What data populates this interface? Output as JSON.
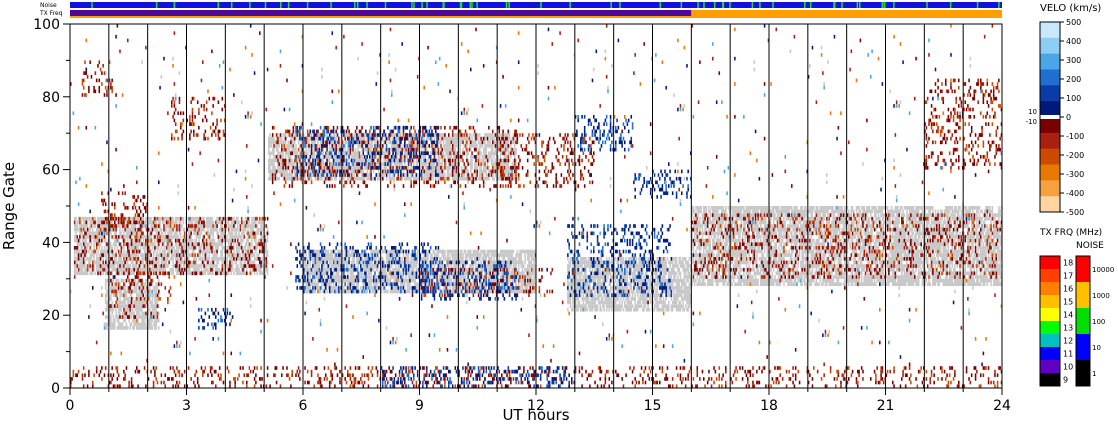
{
  "chart_data": {
    "type": "heatmap",
    "title": "",
    "xlabel": "UT hours",
    "ylabel": "Range Gate",
    "xlim": [
      0,
      24
    ],
    "ylim": [
      0,
      100
    ],
    "x_ticks": [
      "0",
      "3",
      "6",
      "9",
      "12",
      "15",
      "18",
      "21",
      "24"
    ],
    "y_ticks": [
      "0",
      "20",
      "40",
      "60",
      "80",
      "100"
    ],
    "top_bars": {
      "noise_label": "Noise",
      "txfreq_label": "TX Freq",
      "noise_color": "#1010e0",
      "noise_tick_color": "#20e020",
      "txfreq_segments": [
        {
          "from": 0,
          "to": 16,
          "color": "#50089a"
        },
        {
          "from": 16,
          "to": 24,
          "color": "#ff9e00"
        }
      ]
    },
    "velocity_scale": {
      "title": "VELO (km/s)",
      "ticks": [
        "500",
        "400",
        "300",
        "200",
        "100",
        "0",
        "-100",
        "-200",
        "-300",
        "-400",
        "-500"
      ],
      "near_zero": [
        "10",
        "-10"
      ],
      "colors": [
        "#c8e8ff",
        "#8ccdf5",
        "#4aa6e8",
        "#1e6fd0",
        "#0a3ca8",
        "#001a7a",
        "#7a0000",
        "#a82010",
        "#cc4a00",
        "#e87800",
        "#f6a040",
        "#ffd4a0"
      ],
      "ground_scatter_color": "#c8c8c8"
    },
    "txfreq_scale": {
      "title": "TX FRQ (MHz)",
      "ticks": [
        "18",
        "17",
        "16",
        "15",
        "14",
        "13",
        "12",
        "11",
        "10",
        "9"
      ],
      "colors": [
        "#ff0000",
        "#ff4000",
        "#ff8000",
        "#ffc000",
        "#ffff00",
        "#00ff00",
        "#00c0c0",
        "#0000ff",
        "#6000c0",
        "#000000"
      ]
    },
    "noise_scale": {
      "title": "NOISE",
      "ticks": [
        "10000",
        "1000",
        "100",
        "10",
        "1"
      ],
      "colors": [
        "#ff0000",
        "#ffc000",
        "#00e000",
        "#0000ff",
        "#000000"
      ]
    },
    "regions": [
      {
        "x0": 0.1,
        "x1": 5.1,
        "g0": 31,
        "g1": 47,
        "kind": "gs"
      },
      {
        "x0": 0.9,
        "x1": 2.3,
        "g0": 16,
        "g1": 30,
        "kind": "gs"
      },
      {
        "x0": 16.0,
        "x1": 24.0,
        "g0": 28,
        "g1": 50,
        "kind": "gs"
      },
      {
        "x0": 12.8,
        "x1": 16.0,
        "g0": 21,
        "g1": 36,
        "kind": "gs"
      },
      {
        "x0": 6.0,
        "x1": 12.0,
        "g0": 26,
        "g1": 38,
        "kind": "gs"
      },
      {
        "x0": 5.1,
        "x1": 11.5,
        "g0": 57,
        "g1": 70,
        "kind": "gs"
      },
      {
        "x0": 0.1,
        "x1": 5.1,
        "g0": 31,
        "g1": 47,
        "kind": "red"
      },
      {
        "x0": 1.0,
        "x1": 2.6,
        "g0": 19,
        "g1": 32,
        "kind": "red"
      },
      {
        "x0": 2.6,
        "x1": 4.0,
        "g0": 68,
        "g1": 80,
        "kind": "red"
      },
      {
        "x0": 0.3,
        "x1": 1.1,
        "g0": 80,
        "g1": 90,
        "kind": "red"
      },
      {
        "x0": 0.8,
        "x1": 2.0,
        "g0": 43,
        "g1": 54,
        "kind": "red"
      },
      {
        "x0": 5.2,
        "x1": 11.5,
        "g0": 55,
        "g1": 72,
        "kind": "red"
      },
      {
        "x0": 9.0,
        "x1": 12.5,
        "g0": 25,
        "g1": 33,
        "kind": "red"
      },
      {
        "x0": 11.0,
        "x1": 13.5,
        "g0": 55,
        "g1": 70,
        "kind": "red"
      },
      {
        "x0": 16.0,
        "x1": 24.0,
        "g0": 30,
        "g1": 48,
        "kind": "red"
      },
      {
        "x0": 22.0,
        "x1": 24.0,
        "g0": 60,
        "g1": 85,
        "kind": "red"
      },
      {
        "x0": 0.0,
        "x1": 24.0,
        "g0": 0,
        "g1": 6,
        "kind": "red"
      },
      {
        "x0": 5.8,
        "x1": 9.5,
        "g0": 26,
        "g1": 40,
        "kind": "blue"
      },
      {
        "x0": 9.0,
        "x1": 11.5,
        "g0": 24,
        "g1": 35,
        "kind": "blue"
      },
      {
        "x0": 3.3,
        "x1": 4.2,
        "g0": 16,
        "g1": 22,
        "kind": "blue"
      },
      {
        "x0": 5.8,
        "x1": 9.5,
        "g0": 58,
        "g1": 72,
        "kind": "blue"
      },
      {
        "x0": 12.8,
        "x1": 15.5,
        "g0": 25,
        "g1": 45,
        "kind": "blue"
      },
      {
        "x0": 13.0,
        "x1": 14.5,
        "g0": 65,
        "g1": 75,
        "kind": "blue"
      },
      {
        "x0": 14.5,
        "x1": 16.0,
        "g0": 52,
        "g1": 60,
        "kind": "blue"
      },
      {
        "x0": 8.0,
        "x1": 13.0,
        "g0": 0,
        "g1": 6,
        "kind": "blue"
      },
      {
        "x0": 0.0,
        "x1": 24.0,
        "g0": 6,
        "g1": 100,
        "kind": "scatter"
      }
    ]
  }
}
